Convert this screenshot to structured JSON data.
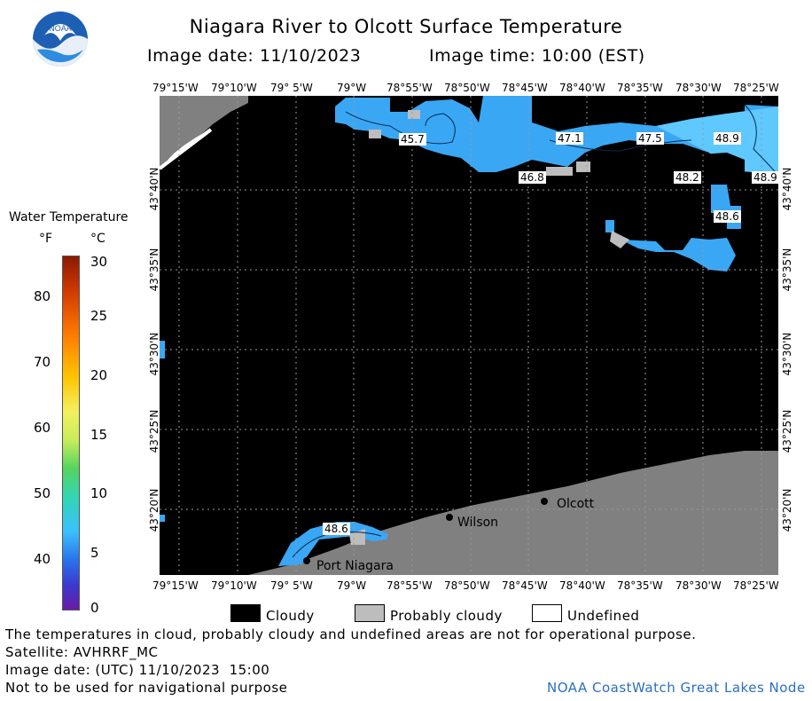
{
  "header": {
    "title": "Niagara River to Olcott Surface Temperature",
    "image_date": "Image date: 11/10/2023",
    "image_time": "Image time: 10:00 (EST)"
  },
  "map": {
    "lon_labels": [
      "79°15'W",
      "79°10'W",
      "79° 5'W",
      "79°W",
      "78°55'W",
      "78°50'W",
      "78°45'W",
      "78°40'W",
      "78°35'W",
      "78°30'W",
      "78°25'W"
    ],
    "lat_labels": [
      "43°40'N",
      "43°35'N",
      "43°30'N",
      "43°25'N",
      "43°20'N"
    ],
    "colors": {
      "cloud": "#000000",
      "probably_cloudy": "#bdbdbd",
      "land": "#808080",
      "water": "#3aa7f5",
      "water_light": "#5ec8ff"
    },
    "temp_labels": [
      {
        "text": "45.7"
      },
      {
        "text": "47.1"
      },
      {
        "text": "47.5"
      },
      {
        "text": "48.9"
      },
      {
        "text": "46.8"
      },
      {
        "text": "48.2"
      },
      {
        "text": "48.9"
      },
      {
        "text": "48.6"
      },
      {
        "text": "48.6"
      }
    ],
    "places": [
      {
        "name": "Olcott"
      },
      {
        "name": "Wilson"
      },
      {
        "name": "Port Niagara"
      }
    ]
  },
  "scale": {
    "title": "Water Temperature",
    "unit_f": "°F",
    "unit_c": "°C",
    "f_ticks": [
      "80",
      "70",
      "60",
      "50",
      "40"
    ],
    "c_ticks": [
      "30",
      "25",
      "20",
      "15",
      "10",
      "5",
      "0"
    ]
  },
  "legend": {
    "cloudy": "Cloudy",
    "probably_cloudy": "Probably cloudy",
    "undefined": "Undefined"
  },
  "footer": {
    "note": "The temperatures in cloud, probably cloudy and undefined areas are not for operational purpose.",
    "satellite": "Satellite: AVHRRF_MC",
    "image_date_utc": "Image date: (UTC) 11/10/2023  15:00",
    "nav_warning": "Not to be used for navigational purpose",
    "credit": "NOAA CoastWatch Great Lakes Node"
  }
}
